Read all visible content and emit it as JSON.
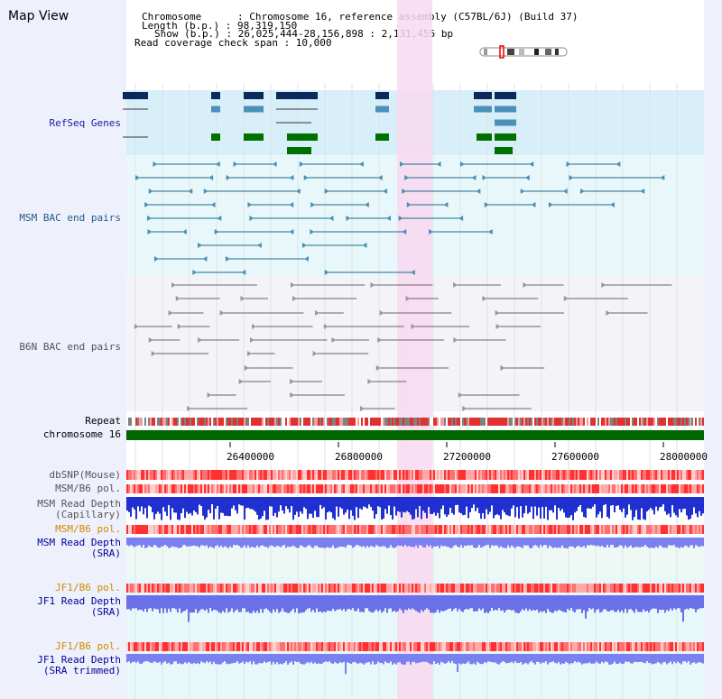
{
  "header": {
    "title": "Map View",
    "chromosome": "Chromosome      : Chromosome 16, reference assembly (C57BL/6J) (Build 37)",
    "length": "Length (b.p.) : 98,319,150",
    "show": "Show (b.p.) : 26,025,444-28,156,898 : 2,131,455 bp",
    "coverage": "Read coverage check span : 10,000"
  },
  "tracks": {
    "refseq": "RefSeq Genes",
    "msm_bac": "MSM BAC end pairs",
    "b6n_bac": "B6N BAC end pairs",
    "repeat": "Repeat",
    "chromosome": "chromosome 16",
    "dbsnp": "dbSNP(Mouse)",
    "msm_b6_pol": "MSM/B6 pol.",
    "msm_read_depth_1": "MSM Read Depth",
    "msm_read_depth_1_sub": "(Capillary)",
    "msm_b6_pol_2": "MSM/B6 pol.",
    "msm_read_depth_2": "MSM Read Depth",
    "msm_read_depth_2_sub": "(SRA)",
    "jf1_b6_pol_1": "JF1/B6 pol.",
    "jf1_read_depth_1": "JF1 Read Depth",
    "jf1_read_depth_1_sub": "(SRA)",
    "jf1_b6_pol_2": "JF1/B6 pol.",
    "jf1_read_depth_2": "JF1 Read Depth",
    "jf1_read_depth_2_sub": "(SRA trimmed)"
  },
  "axis": {
    "ticks": [
      "26400000",
      "26800000",
      "27200000",
      "27600000",
      "28000000"
    ]
  },
  "colors": {
    "refseq_bg": "#d8eef8",
    "msm_bg": "#e8f8fa",
    "b6n_bg": "#f4f4f8",
    "highlight": "#f9d8f0",
    "gene_navy": "#0a2a5c",
    "gene_blue": "#4a90b8",
    "gene_green": "#007000",
    "msm_line": "#1f6a8a",
    "b6n_line": "#666666",
    "chromosome_bar": "#006600",
    "depth_blue": "#2030d0",
    "depth_light": "#7a80f0"
  }
}
